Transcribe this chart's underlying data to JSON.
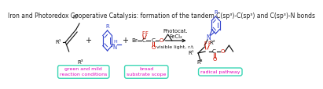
{
  "title": "Iron and Photoredox Cooperative Catalysis: formation of the tandem C(sp³)-C(sp³) and C(sp³)-N bonds",
  "background_color": "#ffffff",
  "title_fontsize": 5.5,
  "title_color": "#222222",
  "bubble1_text": "green and mild\nreaction conditions",
  "bubble2_text": "broad\nsubstrate scope",
  "bubble3_text": "radical pathway",
  "bubble_edge_color": "#3dd6b5",
  "bubble_text_color": "#dd00bb",
  "blue_color": "#3344cc",
  "red_color": "#cc1100",
  "black_color": "#111111"
}
